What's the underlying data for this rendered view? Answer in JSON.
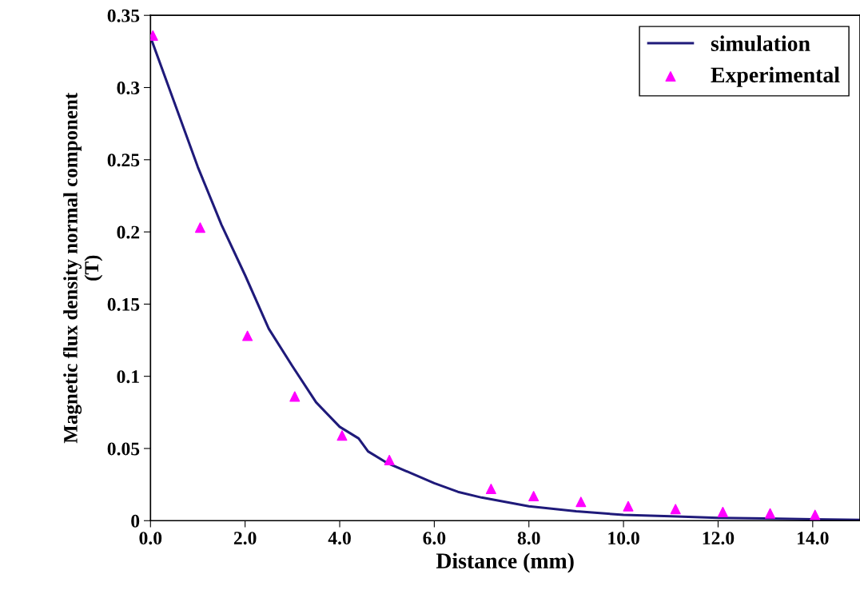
{
  "chart_data": {
    "type": "line",
    "xlabel": "Distance (mm)",
    "ylabel": "Magnetic flux density normal component\n(T)",
    "xlim": [
      0,
      15
    ],
    "ylim": [
      0,
      0.35
    ],
    "xticks": [
      {
        "value": 0,
        "label": "0.0"
      },
      {
        "value": 2,
        "label": "2.0"
      },
      {
        "value": 4,
        "label": "4.0"
      },
      {
        "value": 6,
        "label": "6.0"
      },
      {
        "value": 8,
        "label": "8.0"
      },
      {
        "value": 10,
        "label": "10.0"
      },
      {
        "value": 12,
        "label": "12.0"
      },
      {
        "value": 14,
        "label": "14.0"
      }
    ],
    "yticks": [
      0,
      0.05,
      0.1,
      0.15,
      0.2,
      0.25,
      0.3,
      0.35
    ],
    "grid": false,
    "legend": "top right",
    "series": [
      {
        "name": "simulation",
        "color": "#1f1a7a",
        "marker": "none",
        "line_style": "solid",
        "x": [
          0,
          0.5,
          1,
          1.5,
          2,
          2.5,
          3,
          3.5,
          4,
          4.2,
          4.4,
          4.6,
          5,
          5.5,
          6,
          6.5,
          7,
          8,
          9,
          10,
          11,
          12,
          13,
          14,
          15
        ],
        "values": [
          0.335,
          0.29,
          0.245,
          0.205,
          0.17,
          0.133,
          0.107,
          0.082,
          0.065,
          0.061,
          0.057,
          0.048,
          0.04,
          0.033,
          0.026,
          0.02,
          0.016,
          0.01,
          0.0065,
          0.004,
          0.003,
          0.002,
          0.0015,
          0.001,
          0.0005
        ]
      },
      {
        "name": "Experimental",
        "type": "scatter",
        "color": "#ff00ff",
        "marker": "triangle",
        "x": [
          0.05,
          1.05,
          2.05,
          3.05,
          4.05,
          5.05,
          7.2,
          8.1,
          9.1,
          10.1,
          11.1,
          12.1,
          13.1,
          14.05
        ],
        "values": [
          0.336,
          0.203,
          0.128,
          0.086,
          0.059,
          0.042,
          0.022,
          0.017,
          0.013,
          0.01,
          0.008,
          0.006,
          0.005,
          0.004
        ]
      }
    ]
  }
}
